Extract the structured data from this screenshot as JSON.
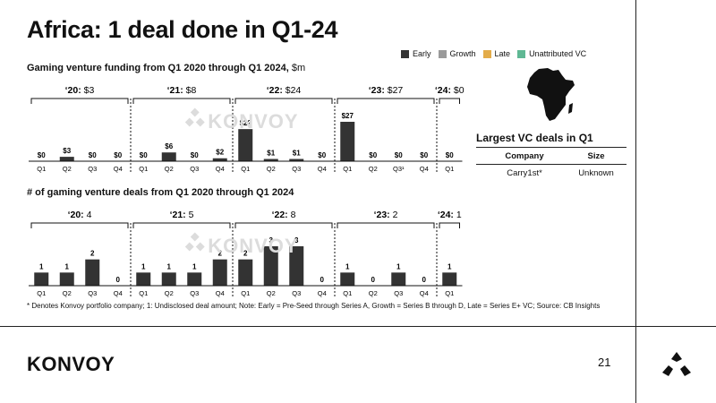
{
  "title": "Africa: 1 deal done in Q1-24",
  "legend": [
    {
      "label": "Early",
      "color": "#333333"
    },
    {
      "label": "Growth",
      "color": "#9a9a9a"
    },
    {
      "label": "Late",
      "color": "#e3ac4a"
    },
    {
      "label": "Unattributed VC",
      "color": "#5fb894"
    }
  ],
  "watermark": "KONVOY",
  "chart_data": [
    {
      "type": "bar",
      "title": "Gaming venture funding from Q1 2020 through Q1 2024,",
      "unit": "$m",
      "series": [
        {
          "name": "Early",
          "color": "#333333"
        }
      ],
      "groups": [
        {
          "year_label": "‘20:",
          "total": "$3",
          "categories": [
            "Q1",
            "Q2",
            "Q3",
            "Q4"
          ],
          "values": [
            0,
            3,
            0,
            0
          ],
          "labels": [
            "$0",
            "$3",
            "$0",
            "$0"
          ]
        },
        {
          "year_label": "‘21:",
          "total": "$8",
          "categories": [
            "Q1",
            "Q2",
            "Q3",
            "Q4"
          ],
          "values": [
            0,
            6,
            0,
            2
          ],
          "labels": [
            "$0",
            "$6",
            "$0",
            "$2"
          ]
        },
        {
          "year_label": "‘22:",
          "total": "$24",
          "categories": [
            "Q1",
            "Q2",
            "Q3",
            "Q4"
          ],
          "values": [
            22,
            1,
            1,
            0
          ],
          "labels": [
            "$22",
            "$1",
            "$1",
            "$0"
          ]
        },
        {
          "year_label": "‘23:",
          "total": "$27",
          "categories": [
            "Q1",
            "Q2",
            "Q3¹",
            "Q4"
          ],
          "values": [
            27,
            0,
            0,
            0
          ],
          "labels": [
            "$27",
            "$0",
            "$0",
            "$0"
          ]
        },
        {
          "year_label": "‘24:",
          "total": "$0",
          "categories": [
            "Q1"
          ],
          "values": [
            0
          ],
          "labels": [
            "$0"
          ]
        }
      ],
      "ylim": [
        0,
        27
      ]
    },
    {
      "type": "bar",
      "title": "# of gaming venture deals from Q1 2020 through Q1 2024",
      "series": [
        {
          "name": "Early",
          "color": "#333333"
        }
      ],
      "groups": [
        {
          "year_label": "‘20:",
          "total": "4",
          "categories": [
            "Q1",
            "Q2",
            "Q3",
            "Q4"
          ],
          "values": [
            1,
            1,
            2,
            0
          ],
          "labels": [
            "1",
            "1",
            "2",
            "0"
          ]
        },
        {
          "year_label": "‘21:",
          "total": "5",
          "categories": [
            "Q1",
            "Q2",
            "Q3",
            "Q4"
          ],
          "values": [
            1,
            1,
            1,
            2
          ],
          "labels": [
            "1",
            "1",
            "1",
            "2"
          ]
        },
        {
          "year_label": "‘22:",
          "total": "8",
          "categories": [
            "Q1",
            "Q2",
            "Q3",
            "Q4"
          ],
          "values": [
            2,
            3,
            3,
            0
          ],
          "labels": [
            "2",
            "3",
            "3",
            "0"
          ]
        },
        {
          "year_label": "‘23:",
          "total": "2",
          "categories": [
            "Q1",
            "Q2",
            "Q3",
            "Q4"
          ],
          "values": [
            1,
            0,
            1,
            0
          ],
          "labels": [
            "1",
            "0",
            "1",
            "0"
          ]
        },
        {
          "year_label": "‘24:",
          "total": "1",
          "categories": [
            "Q1"
          ],
          "values": [
            1
          ],
          "labels": [
            "1"
          ]
        }
      ],
      "ylim": [
        0,
        3
      ]
    }
  ],
  "deals_table": {
    "title": "Largest VC deals in Q1",
    "headers": [
      "Company",
      "Size"
    ],
    "rows": [
      [
        "Carry1st*",
        "Unknown"
      ]
    ]
  },
  "footnote": "* Denotes Konvoy portfolio company; 1: Undisclosed deal amount; Note: Early = Pre-Seed through Series A, Growth = Series B through D, Late = Series E+ VC; Source: CB Insights",
  "footer": {
    "logo": "KONVOY",
    "page_number": "21"
  }
}
